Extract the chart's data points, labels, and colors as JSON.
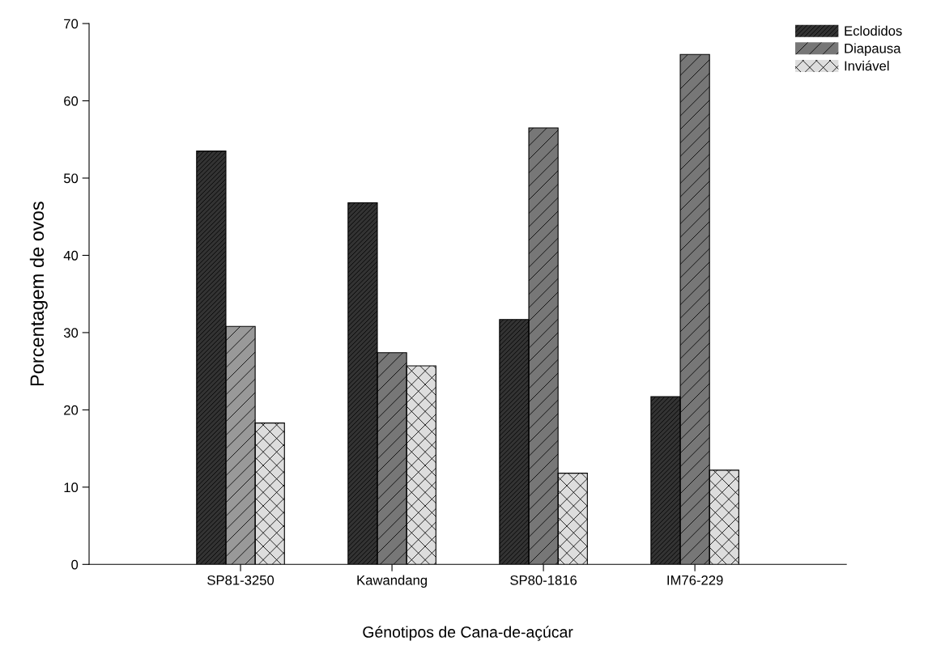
{
  "chart_data": {
    "type": "bar",
    "xlabel": "Génotipos de Cana-de-açúcar",
    "ylabel": "Porcentagem de ovos",
    "categories": [
      "SP81-3250",
      "Kawandang",
      "SP80-1816",
      "IM76-229"
    ],
    "series": [
      {
        "name": "Eclodidos",
        "color": "#333333",
        "values": [
          53.5,
          46.8,
          31.7,
          21.7
        ]
      },
      {
        "name": "Diapausa",
        "color": "#777777",
        "colors": [
          "#999999",
          "#777777",
          "#777777",
          "#777777"
        ],
        "values": [
          30.8,
          27.4,
          56.5,
          66.0
        ]
      },
      {
        "name": "Inviável",
        "color": "#dddddd",
        "values": [
          18.3,
          25.7,
          11.8,
          12.2
        ]
      }
    ],
    "ylim": [
      0,
      70
    ],
    "yticks": [
      0,
      10,
      20,
      30,
      40,
      50,
      60,
      70
    ],
    "grid": false,
    "legend": "top right"
  }
}
